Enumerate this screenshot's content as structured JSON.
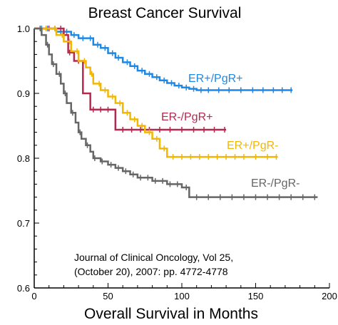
{
  "chart_data": {
    "type": "line",
    "title": "Breast Cancer Survival",
    "xlabel": "Overall Survival in Months",
    "ylabel": "",
    "xlim": [
      0,
      200
    ],
    "ylim": [
      0.6,
      1.0
    ],
    "xticks": [
      0,
      50,
      100,
      150,
      200
    ],
    "yticks": [
      0.6,
      0.7,
      0.8,
      0.9,
      1.0
    ],
    "ytick_labels": [
      "0.6",
      "0.7",
      "0.8",
      "0.9",
      "1.0"
    ],
    "grid": false,
    "annotation": [
      "Journal of Clinical Oncology, Vol 25,",
      "(October 20), 2007: pp. 4772-4778"
    ],
    "series": [
      {
        "name": "ER+/PgR+",
        "color": "#1E88E5",
        "step": true,
        "x": [
          0,
          15,
          25,
          30,
          40,
          45,
          50,
          55,
          60,
          65,
          70,
          75,
          80,
          85,
          90,
          95,
          100,
          105,
          110,
          175
        ],
        "y": [
          1.0,
          0.995,
          0.99,
          0.985,
          0.975,
          0.97,
          0.962,
          0.955,
          0.948,
          0.942,
          0.935,
          0.93,
          0.925,
          0.92,
          0.916,
          0.912,
          0.909,
          0.907,
          0.905,
          0.905
        ],
        "censor_x": [
          5,
          9,
          14,
          18,
          22,
          27,
          33,
          38,
          43,
          48,
          53,
          57,
          63,
          68,
          73,
          78,
          83,
          88,
          93,
          98,
          103,
          108,
          113,
          118,
          125,
          132,
          140,
          148,
          155,
          162,
          168,
          174
        ]
      },
      {
        "name": "ER-/PgR+",
        "color": "#B5294E",
        "step": true,
        "x": [
          0,
          20,
          23,
          27,
          33,
          38,
          45,
          52,
          55,
          65,
          70,
          130
        ],
        "y": [
          1.0,
          0.99,
          0.963,
          0.95,
          0.9,
          0.875,
          0.875,
          0.875,
          0.844,
          0.844,
          0.844,
          0.844
        ],
        "censor_x": [
          10,
          18,
          24,
          30,
          40,
          45,
          50,
          60,
          66,
          72,
          78,
          85,
          92,
          100,
          108,
          115,
          122,
          129
        ]
      },
      {
        "name": "ER+/PgR-",
        "color": "#F2B705",
        "step": true,
        "x": [
          0,
          15,
          20,
          25,
          30,
          35,
          38,
          40,
          45,
          50,
          55,
          60,
          65,
          70,
          75,
          80,
          85,
          90,
          165
        ],
        "y": [
          1.0,
          0.99,
          0.98,
          0.965,
          0.95,
          0.94,
          0.93,
          0.915,
          0.905,
          0.895,
          0.885,
          0.87,
          0.86,
          0.85,
          0.84,
          0.83,
          0.815,
          0.802,
          0.802
        ],
        "censor_x": [
          8,
          14,
          19,
          24,
          29,
          34,
          39,
          44,
          48,
          53,
          58,
          63,
          68,
          73,
          78,
          83,
          88,
          94,
          100,
          106,
          112,
          118,
          124,
          130,
          136,
          142,
          150,
          158,
          164
        ]
      },
      {
        "name": "ER-/PgR-",
        "color": "#666666",
        "step": true,
        "x": [
          0,
          5,
          8,
          10,
          12,
          15,
          18,
          20,
          22,
          25,
          28,
          30,
          32,
          35,
          38,
          40,
          45,
          50,
          55,
          60,
          65,
          70,
          80,
          90,
          100,
          105,
          192
        ],
        "y": [
          1.0,
          0.99,
          0.975,
          0.96,
          0.945,
          0.93,
          0.915,
          0.9,
          0.885,
          0.87,
          0.855,
          0.84,
          0.83,
          0.82,
          0.81,
          0.8,
          0.795,
          0.79,
          0.785,
          0.78,
          0.775,
          0.77,
          0.765,
          0.76,
          0.755,
          0.74,
          0.74
        ],
        "censor_x": [
          4,
          9,
          13,
          17,
          21,
          26,
          31,
          36,
          41,
          46,
          52,
          57,
          62,
          67,
          72,
          77,
          82,
          87,
          92,
          97,
          103,
          110,
          118,
          126,
          134,
          142,
          150,
          158,
          166,
          174,
          182,
          190
        ]
      }
    ]
  }
}
